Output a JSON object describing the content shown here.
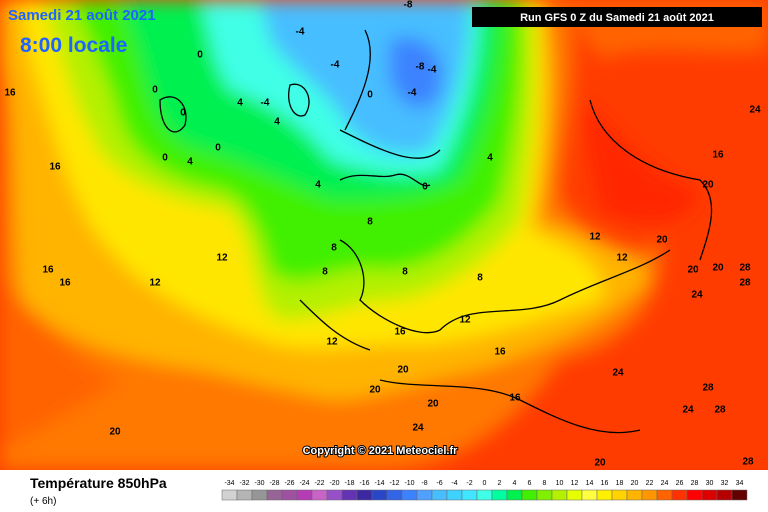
{
  "header": {
    "title": "Samedi 21 août 2021",
    "time": "8:00 locale",
    "run": "Run GFS 0 Z du Samedi 21 août 2021"
  },
  "copyright": "Copyright © 2021 Meteociel.fr",
  "legend": {
    "title": "Température 850hPa",
    "step": "(+ 6h)",
    "values": [
      -34,
      -32,
      -30,
      -28,
      -26,
      -24,
      -22,
      -20,
      -18,
      -16,
      -14,
      -12,
      -10,
      -8,
      -6,
      -4,
      -2,
      0,
      2,
      4,
      6,
      8,
      10,
      12,
      14,
      16,
      18,
      20,
      22,
      24,
      26,
      28,
      30,
      32,
      34
    ],
    "colors": [
      "#d2d2d2",
      "#b4b4b4",
      "#969696",
      "#966496",
      "#a050a0",
      "#b43cb4",
      "#c864c8",
      "#9650c8",
      "#6432b4",
      "#3c28a0",
      "#2846c8",
      "#3264e6",
      "#3c82ff",
      "#50a0ff",
      "#46beff",
      "#40d2ff",
      "#40e6ff",
      "#40ffe6",
      "#00ffa0",
      "#00f050",
      "#40f000",
      "#80f000",
      "#b4f000",
      "#e6ff00",
      "#ffff40",
      "#fff000",
      "#ffd200",
      "#ffb400",
      "#ff9600",
      "#ff6400",
      "#ff3200",
      "#ff0000",
      "#dc0000",
      "#b40000",
      "#640000"
    ]
  },
  "contour_labels": [
    16,
    16,
    16,
    16,
    12,
    12,
    20,
    20,
    20,
    24,
    20,
    16,
    16,
    12,
    8,
    8,
    8,
    12,
    16,
    24,
    28,
    24,
    28,
    20,
    16,
    24,
    20,
    20,
    20,
    28,
    28,
    24,
    12,
    12,
    4,
    0,
    -4,
    -8,
    -4,
    -8,
    -4,
    -4,
    -4,
    4,
    4,
    0,
    0,
    0,
    0,
    4,
    0,
    4,
    8,
    8,
    0,
    28,
    20
  ]
}
